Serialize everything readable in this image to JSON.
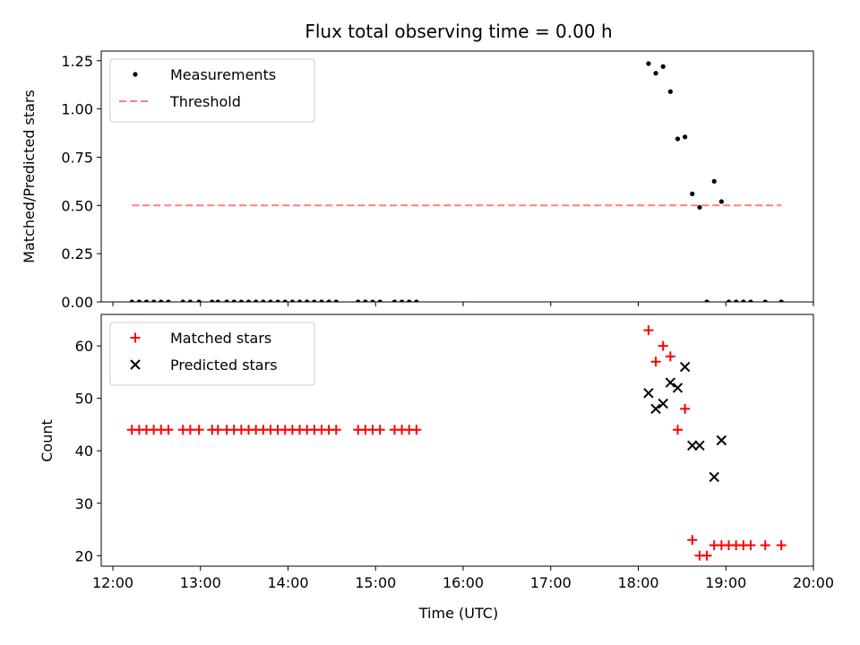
{
  "chart_data": [
    {
      "type": "scatter",
      "title": "Flux total observing time = 0.00 h",
      "xlabel": "",
      "ylabel": "Matched/Predicted stars",
      "xlim": [
        "11:52",
        "20:00"
      ],
      "ylim": [
        0,
        1.3
      ],
      "x_ticks": [
        "12:00",
        "13:00",
        "14:00",
        "15:00",
        "16:00",
        "17:00",
        "18:00",
        "19:00",
        "20:00"
      ],
      "y_ticks": [
        "0.00",
        "0.25",
        "0.50",
        "0.75",
        "1.00",
        "1.25"
      ],
      "legend_position": "top-left",
      "series": [
        {
          "name": "Measurements",
          "marker": "dot",
          "color": "#000000",
          "points": [
            [
              "12:13",
              0
            ],
            [
              "12:18",
              0
            ],
            [
              "12:23",
              0
            ],
            [
              "12:28",
              0
            ],
            [
              "12:33",
              0
            ],
            [
              "12:38",
              0
            ],
            [
              "12:48",
              0
            ],
            [
              "12:53",
              0
            ],
            [
              "12:59",
              0
            ],
            [
              "13:08",
              0
            ],
            [
              "13:12",
              0
            ],
            [
              "13:18",
              0
            ],
            [
              "13:23",
              0
            ],
            [
              "13:28",
              0
            ],
            [
              "13:33",
              0
            ],
            [
              "13:38",
              0
            ],
            [
              "13:43",
              0
            ],
            [
              "13:48",
              0
            ],
            [
              "13:53",
              0
            ],
            [
              "13:58",
              0
            ],
            [
              "14:03",
              0
            ],
            [
              "14:08",
              0
            ],
            [
              "14:13",
              0
            ],
            [
              "14:18",
              0
            ],
            [
              "14:23",
              0
            ],
            [
              "14:28",
              0
            ],
            [
              "14:33",
              0
            ],
            [
              "14:48",
              0
            ],
            [
              "14:53",
              0
            ],
            [
              "14:58",
              0
            ],
            [
              "15:03",
              0
            ],
            [
              "15:13",
              0
            ],
            [
              "15:18",
              0
            ],
            [
              "15:23",
              0
            ],
            [
              "15:28",
              0
            ],
            [
              "18:07",
              1.235
            ],
            [
              "18:12",
              1.185
            ],
            [
              "18:17",
              1.22
            ],
            [
              "18:22",
              1.09
            ],
            [
              "18:27",
              0.845
            ],
            [
              "18:32",
              0.855
            ],
            [
              "18:37",
              0.56
            ],
            [
              "18:42",
              0.49
            ],
            [
              "18:47",
              0
            ],
            [
              "18:52",
              0.625
            ],
            [
              "18:57",
              0.52
            ],
            [
              "19:02",
              0
            ],
            [
              "19:07",
              0
            ],
            [
              "19:12",
              0
            ],
            [
              "19:17",
              0
            ],
            [
              "19:27",
              0
            ],
            [
              "19:38",
              0
            ]
          ]
        },
        {
          "name": "Threshold",
          "marker": "dashed-line",
          "color": "#ff7f7f",
          "points": [
            [
              "12:13",
              0.5
            ],
            [
              "19:38",
              0.5
            ]
          ]
        }
      ]
    },
    {
      "type": "scatter",
      "title": "",
      "xlabel": "Time (UTC)",
      "ylabel": "Count",
      "xlim": [
        "11:52",
        "20:00"
      ],
      "ylim": [
        18,
        66
      ],
      "x_ticks": [
        "12:00",
        "13:00",
        "14:00",
        "15:00",
        "16:00",
        "17:00",
        "18:00",
        "19:00",
        "20:00"
      ],
      "y_ticks": [
        "20",
        "30",
        "40",
        "50",
        "60"
      ],
      "legend_position": "top-left",
      "series": [
        {
          "name": "Matched stars",
          "marker": "plus",
          "color": "#ff0000",
          "points": [
            [
              "12:13",
              44
            ],
            [
              "12:18",
              44
            ],
            [
              "12:23",
              44
            ],
            [
              "12:28",
              44
            ],
            [
              "12:33",
              44
            ],
            [
              "12:38",
              44
            ],
            [
              "12:48",
              44
            ],
            [
              "12:53",
              44
            ],
            [
              "12:59",
              44
            ],
            [
              "13:08",
              44
            ],
            [
              "13:12",
              44
            ],
            [
              "13:18",
              44
            ],
            [
              "13:23",
              44
            ],
            [
              "13:28",
              44
            ],
            [
              "13:33",
              44
            ],
            [
              "13:38",
              44
            ],
            [
              "13:43",
              44
            ],
            [
              "13:48",
              44
            ],
            [
              "13:53",
              44
            ],
            [
              "13:58",
              44
            ],
            [
              "14:03",
              44
            ],
            [
              "14:08",
              44
            ],
            [
              "14:13",
              44
            ],
            [
              "14:18",
              44
            ],
            [
              "14:23",
              44
            ],
            [
              "14:28",
              44
            ],
            [
              "14:33",
              44
            ],
            [
              "14:48",
              44
            ],
            [
              "14:53",
              44
            ],
            [
              "14:58",
              44
            ],
            [
              "15:03",
              44
            ],
            [
              "15:13",
              44
            ],
            [
              "15:18",
              44
            ],
            [
              "15:23",
              44
            ],
            [
              "15:28",
              44
            ],
            [
              "18:07",
              63
            ],
            [
              "18:12",
              57
            ],
            [
              "18:17",
              60
            ],
            [
              "18:22",
              58
            ],
            [
              "18:27",
              44
            ],
            [
              "18:32",
              48
            ],
            [
              "18:37",
              23
            ],
            [
              "18:42",
              20
            ],
            [
              "18:47",
              20
            ],
            [
              "18:52",
              22
            ],
            [
              "18:57",
              22
            ],
            [
              "19:02",
              22
            ],
            [
              "19:07",
              22
            ],
            [
              "19:12",
              22
            ],
            [
              "19:17",
              22
            ],
            [
              "19:27",
              22
            ],
            [
              "19:38",
              22
            ]
          ]
        },
        {
          "name": "Predicted stars",
          "marker": "x",
          "color": "#000000",
          "points": [
            [
              "18:07",
              51
            ],
            [
              "18:12",
              48
            ],
            [
              "18:17",
              49
            ],
            [
              "18:22",
              53
            ],
            [
              "18:27",
              52
            ],
            [
              "18:32",
              56
            ],
            [
              "18:37",
              41
            ],
            [
              "18:42",
              41
            ],
            [
              "18:52",
              35
            ],
            [
              "18:57",
              42
            ]
          ]
        }
      ]
    }
  ]
}
